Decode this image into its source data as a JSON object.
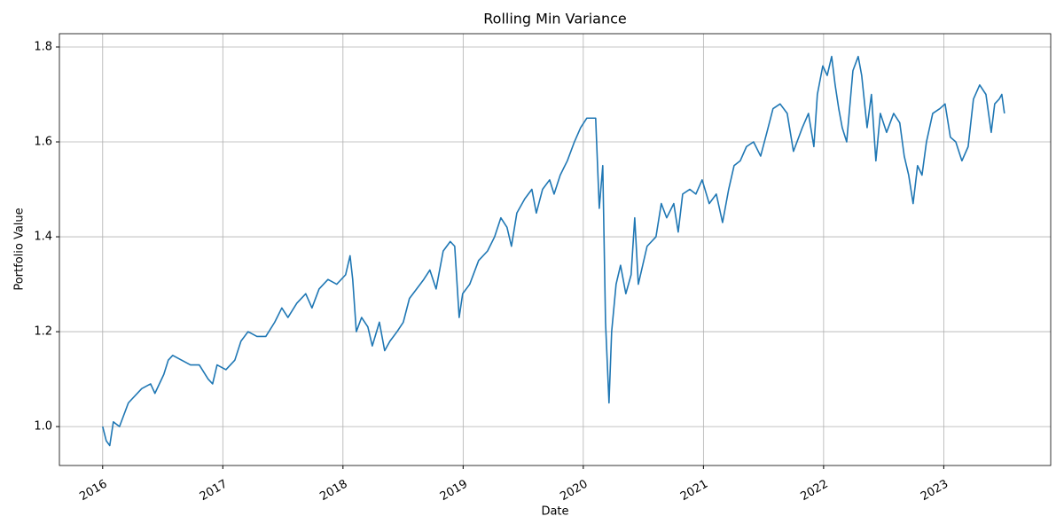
{
  "chart_data": {
    "type": "line",
    "title": "Rolling Min Variance",
    "xlabel": "Date",
    "ylabel": "Portfolio Value",
    "color": "#1f77b4",
    "grid": true,
    "xlim": [
      2015.64,
      2023.89
    ],
    "ylim": [
      0.918,
      1.828
    ],
    "xticks": [
      2016,
      2017,
      2018,
      2019,
      2020,
      2021,
      2022,
      2023
    ],
    "yticks": [
      {
        "value": 1,
        "label": "1.0"
      },
      1.2,
      1.4,
      1.6,
      1.8
    ],
    "x": [
      2016.0,
      2016.03,
      2016.059,
      2016.089,
      2016.14,
      2016.214,
      2016.325,
      2016.399,
      2016.435,
      2016.509,
      2016.546,
      2016.583,
      2016.657,
      2016.731,
      2016.804,
      2016.878,
      2016.915,
      2016.952,
      2017.026,
      2017.1,
      2017.151,
      2017.21,
      2017.284,
      2017.358,
      2017.432,
      2017.491,
      2017.542,
      2017.616,
      2017.69,
      2017.742,
      2017.801,
      2017.875,
      2017.948,
      2018.022,
      2018.059,
      2018.081,
      2018.111,
      2018.155,
      2018.207,
      2018.244,
      2018.303,
      2018.347,
      2018.391,
      2018.45,
      2018.502,
      2018.553,
      2018.613,
      2018.672,
      2018.723,
      2018.775,
      2018.834,
      2018.893,
      2018.93,
      2018.967,
      2018.996,
      2019.055,
      2019.129,
      2019.203,
      2019.262,
      2019.314,
      2019.365,
      2019.402,
      2019.447,
      2019.513,
      2019.572,
      2019.609,
      2019.661,
      2019.72,
      2019.757,
      2019.808,
      2019.867,
      2019.926,
      2019.978,
      2020.029,
      2020.103,
      2020.133,
      2020.162,
      2020.185,
      2020.214,
      2020.236,
      2020.273,
      2020.31,
      2020.354,
      2020.398,
      2020.428,
      2020.458,
      2020.531,
      2020.605,
      2020.649,
      2020.694,
      2020.753,
      2020.79,
      2020.827,
      2020.886,
      2020.937,
      2020.989,
      2021.048,
      2021.107,
      2021.159,
      2021.21,
      2021.255,
      2021.306,
      2021.358,
      2021.417,
      2021.476,
      2021.528,
      2021.579,
      2021.638,
      2021.697,
      2021.749,
      2021.823,
      2021.874,
      2021.919,
      2021.948,
      2021.993,
      2022.03,
      2022.067,
      2022.096,
      2022.126,
      2022.155,
      2022.192,
      2022.244,
      2022.288,
      2022.317,
      2022.362,
      2022.398,
      2022.435,
      2022.472,
      2022.524,
      2022.583,
      2022.634,
      2022.671,
      2022.708,
      2022.745,
      2022.782,
      2022.819,
      2022.856,
      2022.908,
      2022.967,
      2023.011,
      2023.055,
      2023.1,
      2023.151,
      2023.203,
      2023.247,
      2023.299,
      2023.351,
      2023.395,
      2023.424,
      2023.461,
      2023.483,
      2023.505
    ],
    "values": [
      1.0,
      0.97,
      0.96,
      1.01,
      1.0,
      1.05,
      1.08,
      1.09,
      1.07,
      1.11,
      1.14,
      1.15,
      1.14,
      1.13,
      1.13,
      1.1,
      1.09,
      1.13,
      1.12,
      1.14,
      1.18,
      1.2,
      1.19,
      1.19,
      1.22,
      1.25,
      1.23,
      1.26,
      1.28,
      1.25,
      1.29,
      1.31,
      1.3,
      1.32,
      1.36,
      1.31,
      1.2,
      1.23,
      1.21,
      1.17,
      1.22,
      1.16,
      1.18,
      1.2,
      1.22,
      1.27,
      1.29,
      1.31,
      1.33,
      1.29,
      1.37,
      1.39,
      1.38,
      1.23,
      1.28,
      1.3,
      1.35,
      1.37,
      1.4,
      1.44,
      1.42,
      1.38,
      1.45,
      1.48,
      1.5,
      1.45,
      1.5,
      1.52,
      1.49,
      1.53,
      1.56,
      1.6,
      1.63,
      1.65,
      1.65,
      1.46,
      1.55,
      1.22,
      1.05,
      1.2,
      1.3,
      1.34,
      1.28,
      1.32,
      1.44,
      1.3,
      1.38,
      1.4,
      1.47,
      1.44,
      1.47,
      1.41,
      1.49,
      1.5,
      1.49,
      1.52,
      1.47,
      1.49,
      1.43,
      1.5,
      1.55,
      1.56,
      1.59,
      1.6,
      1.57,
      1.62,
      1.67,
      1.68,
      1.66,
      1.58,
      1.63,
      1.66,
      1.59,
      1.7,
      1.76,
      1.74,
      1.78,
      1.72,
      1.67,
      1.63,
      1.6,
      1.75,
      1.78,
      1.74,
      1.63,
      1.7,
      1.56,
      1.66,
      1.62,
      1.66,
      1.64,
      1.57,
      1.53,
      1.47,
      1.55,
      1.53,
      1.6,
      1.66,
      1.67,
      1.68,
      1.61,
      1.6,
      1.56,
      1.59,
      1.69,
      1.72,
      1.7,
      1.62,
      1.68,
      1.69,
      1.7,
      1.66
    ]
  }
}
